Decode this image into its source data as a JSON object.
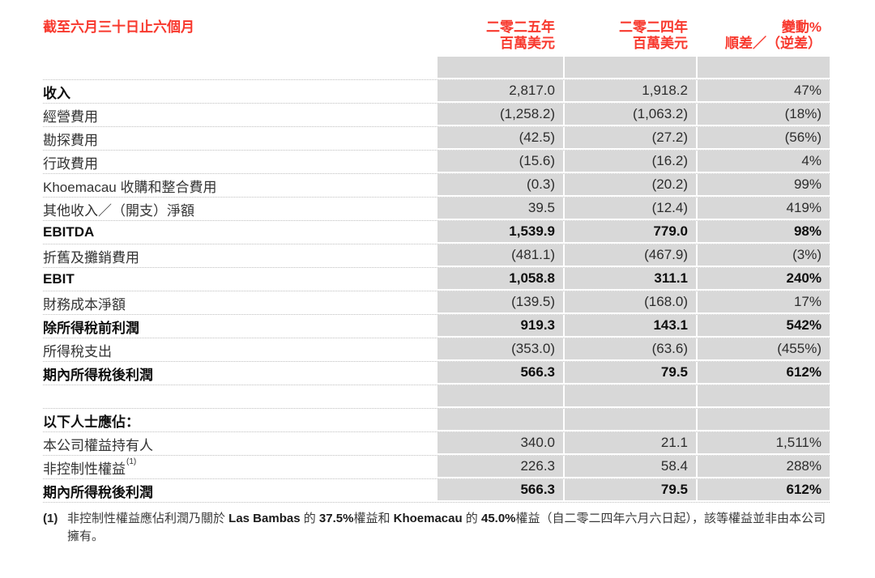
{
  "colors": {
    "accent_red": "#f8382d",
    "cell_gray": "#d8d8d8"
  },
  "header": {
    "period_label": "截至六月三十日止六個月",
    "col_2025": {
      "year": "二零二五年",
      "unit": "百萬美元"
    },
    "col_2024": {
      "year": "二零二四年",
      "unit": "百萬美元"
    },
    "col_change": {
      "line1": "變動%",
      "line2": "順差／（逆差）"
    }
  },
  "table": {
    "rows": [
      {
        "type": "spacer"
      },
      {
        "label": "收入",
        "bold_label": true,
        "bold_values": false,
        "v2025": "2,817.0",
        "v2024": "1,918.2",
        "change": "47%"
      },
      {
        "label": "經營費用",
        "bold_label": false,
        "bold_values": false,
        "v2025": "(1,258.2)",
        "v2024": "(1,063.2)",
        "change": "(18%)"
      },
      {
        "label": "勘探費用",
        "bold_label": false,
        "bold_values": false,
        "v2025": "(42.5)",
        "v2024": "(27.2)",
        "change": "(56%)"
      },
      {
        "label": "行政費用",
        "bold_label": false,
        "bold_values": false,
        "v2025": "(15.6)",
        "v2024": "(16.2)",
        "change": "4%"
      },
      {
        "label": "Khoemacau 收購和整合費用",
        "bold_label": false,
        "bold_values": false,
        "v2025": "(0.3)",
        "v2024": "(20.2)",
        "change": "99%"
      },
      {
        "label": "其他收入／（開支）淨額",
        "bold_label": false,
        "bold_values": false,
        "v2025": "39.5",
        "v2024": "(12.4)",
        "change": "419%"
      },
      {
        "label": "EBITDA",
        "bold_label": true,
        "bold_values": true,
        "v2025": "1,539.9",
        "v2024": "779.0",
        "change": "98%"
      },
      {
        "label": "折舊及攤銷費用",
        "bold_label": false,
        "bold_values": false,
        "v2025": "(481.1)",
        "v2024": "(467.9)",
        "change": "(3%)"
      },
      {
        "label": "EBIT",
        "bold_label": true,
        "bold_values": true,
        "v2025": "1,058.8",
        "v2024": "311.1",
        "change": "240%"
      },
      {
        "label": "財務成本淨額",
        "bold_label": false,
        "bold_values": false,
        "v2025": "(139.5)",
        "v2024": "(168.0)",
        "change": "17%"
      },
      {
        "label": "除所得稅前利潤",
        "bold_label": true,
        "bold_values": true,
        "v2025": "919.3",
        "v2024": "143.1",
        "change": "542%"
      },
      {
        "label": "所得稅支出",
        "bold_label": false,
        "bold_values": false,
        "v2025": "(353.0)",
        "v2024": "(63.6)",
        "change": "(455%)"
      },
      {
        "label": "期內所得稅後利潤",
        "bold_label": true,
        "bold_values": true,
        "v2025": "566.3",
        "v2024": "79.5",
        "change": "612%"
      },
      {
        "type": "spacer"
      },
      {
        "type": "section",
        "label": "以下人士應佔：",
        "bold_label": true,
        "bold_values": false,
        "v2025": "",
        "v2024": "",
        "change": ""
      },
      {
        "label": "本公司權益持有人",
        "bold_label": false,
        "bold_values": false,
        "v2025": "340.0",
        "v2024": "21.1",
        "change": "1,511%"
      },
      {
        "label": "非控制性權益",
        "sup": "(1)",
        "bold_label": false,
        "bold_values": false,
        "v2025": "226.3",
        "v2024": "58.4",
        "change": "288%"
      },
      {
        "label": "期內所得稅後利潤",
        "bold_label": true,
        "bold_values": true,
        "v2025": "566.3",
        "v2024": "79.5",
        "change": "612%"
      }
    ]
  },
  "footnote": {
    "marker": "(1)",
    "segments": [
      {
        "text": "非控制性權益應佔利潤乃關於 ",
        "bold": false
      },
      {
        "text": "Las Bambas",
        "bold": true
      },
      {
        "text": " 的 ",
        "bold": false
      },
      {
        "text": "37.5%",
        "bold": true
      },
      {
        "text": "權益和 ",
        "bold": false
      },
      {
        "text": "Khoemacau",
        "bold": true
      },
      {
        "text": " 的 ",
        "bold": false
      },
      {
        "text": "45.0%",
        "bold": true
      },
      {
        "text": "權益（自二零二四年六月六日起），該等權益並非由本公司擁有。",
        "bold": false
      }
    ]
  }
}
